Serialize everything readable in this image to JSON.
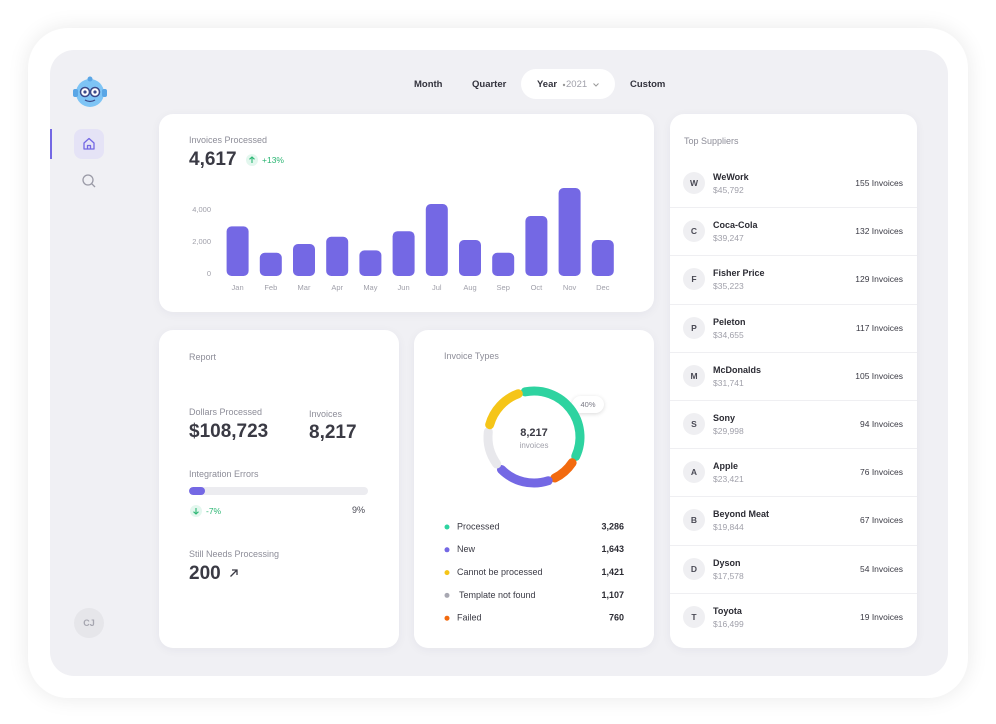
{
  "nav": {
    "tabs": [
      "Month",
      "Quarter",
      "Year",
      "Custom"
    ],
    "year": "2021",
    "avatar": "CJ"
  },
  "chart_data": [
    {
      "type": "bar",
      "title": "Invoices Processed",
      "headline": "4,617",
      "change": "+13%",
      "categories": [
        "Jan",
        "Feb",
        "Mar",
        "Apr",
        "May",
        "Jun",
        "Jul",
        "Aug",
        "Sep",
        "Oct",
        "Nov",
        "Dec"
      ],
      "values": [
        3100,
        1450,
        2000,
        2450,
        1600,
        2800,
        4500,
        2250,
        1450,
        3750,
        5500,
        2250
      ],
      "color": "#7468e4",
      "ylim": [
        0,
        5500
      ],
      "yticks": [
        0,
        {
          "value": 2000,
          "label": "2,000"
        },
        {
          "value": 4000,
          "label": "4,000"
        }
      ]
    },
    {
      "type": "donut",
      "title": "Invoice Types",
      "center_value": "8,217",
      "center_label": "invoices",
      "callout": "40%",
      "categories": [
        "Processed",
        "New",
        "Cannot be processed",
        "Template not found",
        "Failed"
      ],
      "values": [
        3286,
        1643,
        1421,
        1107,
        760
      ],
      "value_labels": [
        "3,286",
        "1,643",
        "1,421",
        "1,107",
        "760"
      ],
      "colors": [
        "#2ed3a0",
        "#7468e4",
        "#f5c518",
        "#e8e8ec",
        "#f26a0f"
      ]
    }
  ],
  "report": {
    "title": "Report",
    "dollars_label": "Dollars Processed",
    "dollars": "$108,723",
    "invoices_label": "Invoices",
    "invoices": "8,217",
    "errors_label": "Integration Errors",
    "errors_change": "-7%",
    "errors": {
      "value": 9,
      "label": "9%"
    },
    "pending_label": "Still Needs Processing",
    "pending": "200"
  },
  "suppliers": {
    "title": "Top Suppliers",
    "rows": [
      {
        "initial": "W",
        "name": "WeWork",
        "amount": "$45,792",
        "invoices": "155 Invoices"
      },
      {
        "initial": "C",
        "name": "Coca-Cola",
        "amount": "$39,247",
        "invoices": "132 Invoices"
      },
      {
        "initial": "F",
        "name": "Fisher Price",
        "amount": "$35,223",
        "invoices": "129 Invoices"
      },
      {
        "initial": "P",
        "name": "Peleton",
        "amount": "$34,655",
        "invoices": "117 Invoices"
      },
      {
        "initial": "M",
        "name": "McDonalds",
        "amount": "$31,741",
        "invoices": "105 Invoices"
      },
      {
        "initial": "S",
        "name": "Sony",
        "amount": "$29,998",
        "invoices": "94 Invoices"
      },
      {
        "initial": "A",
        "name": "Apple",
        "amount": "$23,421",
        "invoices": "76 Invoices"
      },
      {
        "initial": "B",
        "name": "Beyond Meat",
        "amount": "$19,844",
        "invoices": "67 Invoices"
      },
      {
        "initial": "D",
        "name": "Dyson",
        "amount": "$17,578",
        "invoices": "54 Invoices"
      },
      {
        "initial": "T",
        "name": "Toyota",
        "amount": "$16,499",
        "invoices": "19 Invoices"
      }
    ]
  }
}
